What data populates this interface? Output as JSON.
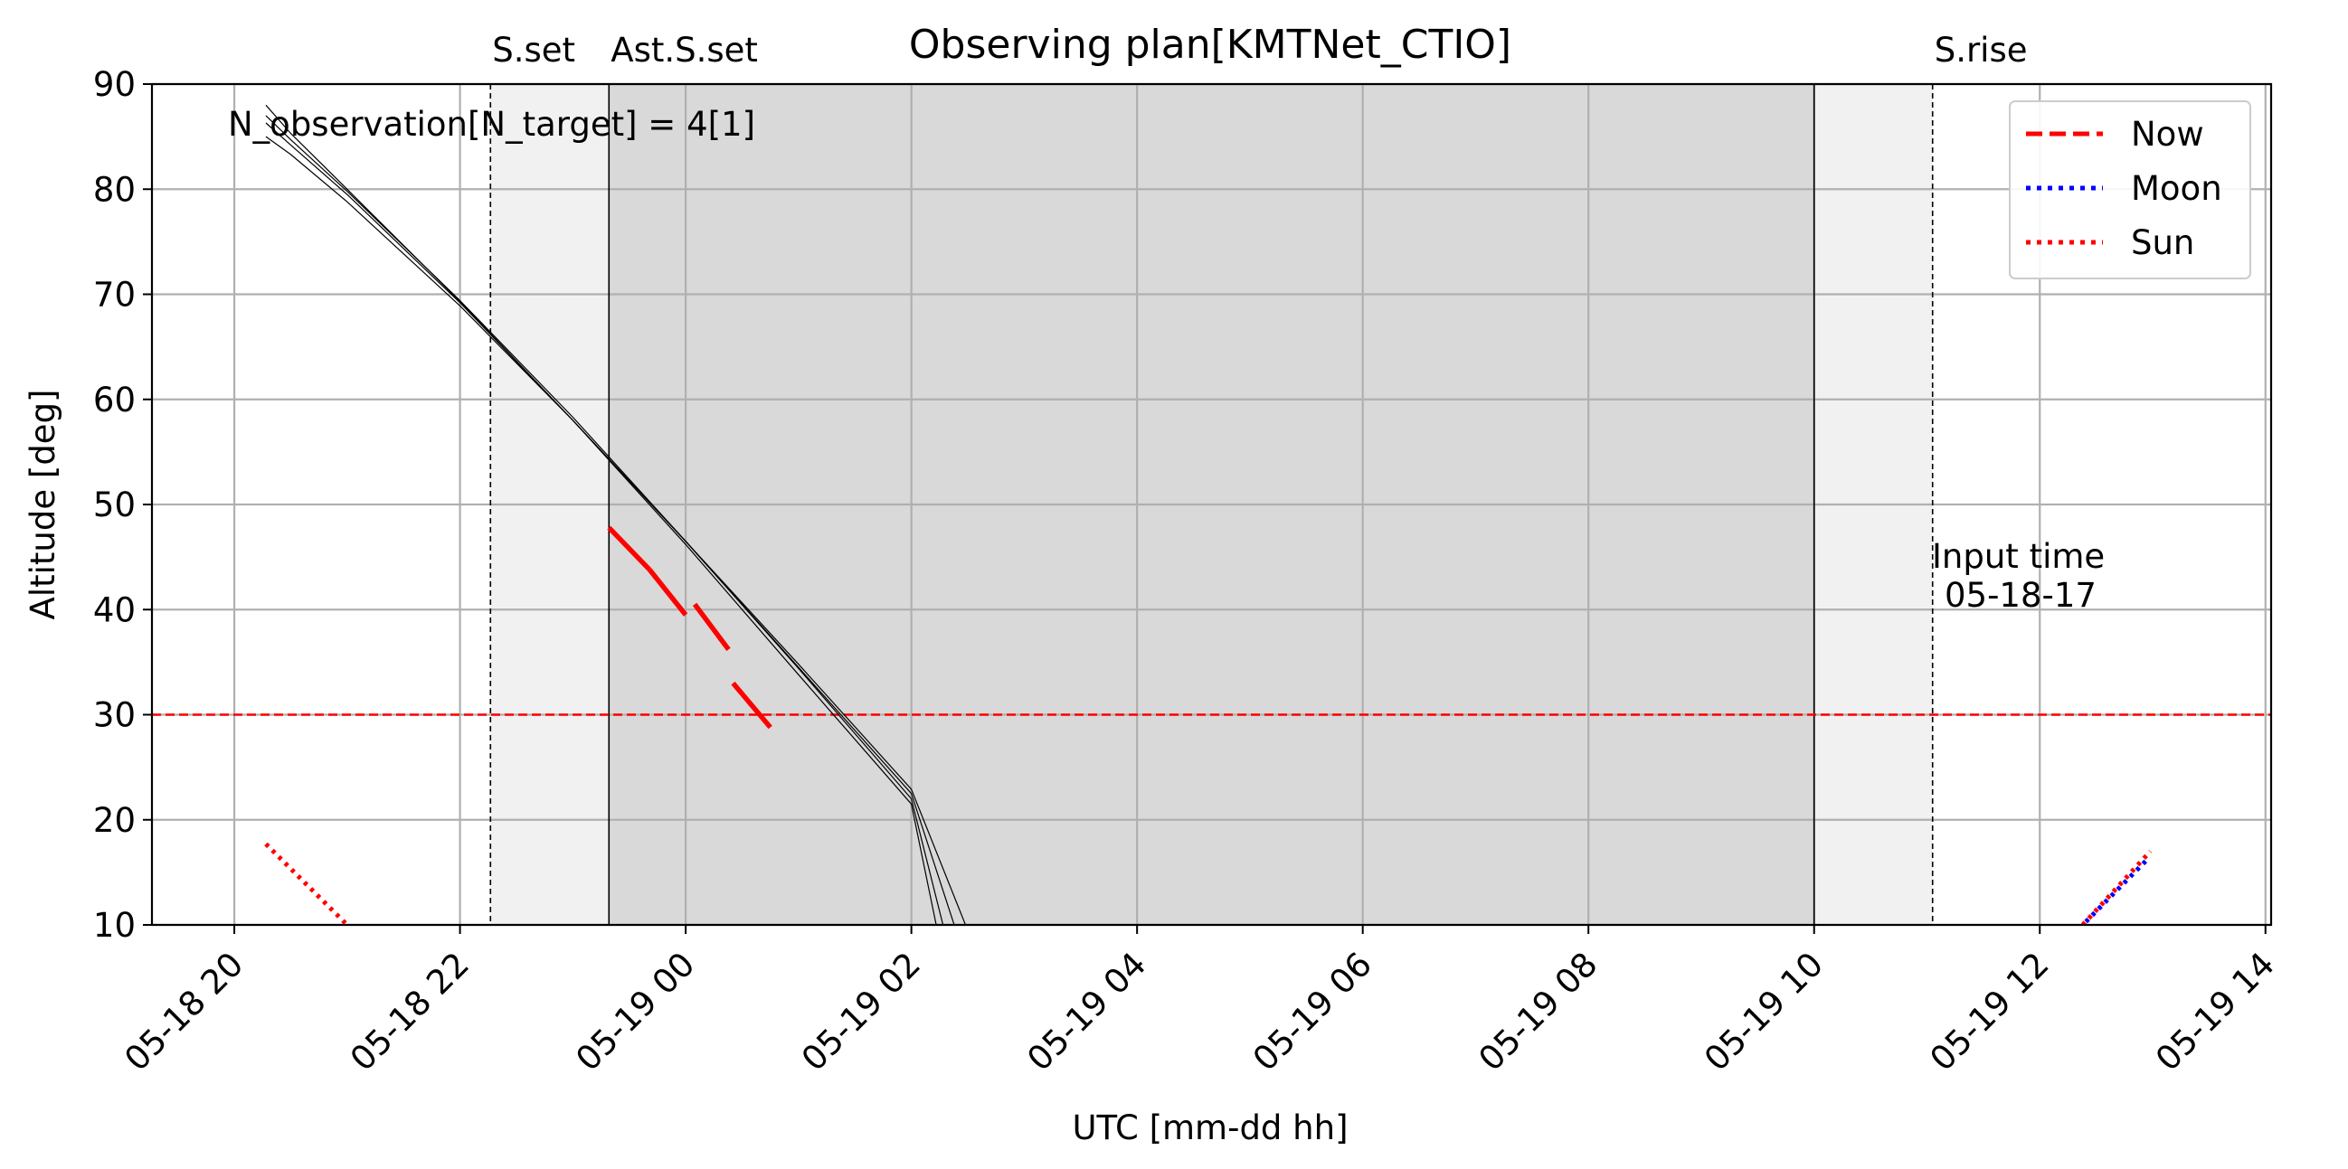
{
  "chart_data": {
    "type": "line",
    "title": "Observing plan[KMTNet_CTIO]",
    "xlabel": "UTC [mm-dd hh]",
    "ylabel": "Altitude [deg]",
    "xlim": [
      -0.73,
      18.05
    ],
    "ylim": [
      10,
      90
    ],
    "x_unit": "hours since 05-18 20 UTC",
    "x_ticks": [
      0,
      2,
      4,
      6,
      8,
      10,
      12,
      14,
      16,
      18
    ],
    "x_tick_labels": [
      "05-18 20",
      "05-18 22",
      "05-19 00",
      "05-19 02",
      "05-19 04",
      "05-19 06",
      "05-19 08",
      "05-19 10",
      "05-19 12",
      "05-19 14"
    ],
    "y_ticks": [
      10,
      20,
      30,
      40,
      50,
      60,
      70,
      80,
      90
    ],
    "grid": true,
    "legend_position": "top-right",
    "annotation": "N_observation[N_target] = 4[1]",
    "input_time_label": "Input time",
    "input_time_value": "05-18-17",
    "altitude_limit": 30,
    "night_events": [
      {
        "label": "S.set",
        "x": 2.27
      },
      {
        "label": "Ast.S.set",
        "x": 3.32
      },
      {
        "label": "",
        "x": 14.0
      },
      {
        "label": "S.rise",
        "x": 15.05
      }
    ],
    "target_tracks": [
      {
        "x": [
          0.28,
          0.5,
          1.0,
          2.0,
          3.0,
          4.0,
          5.0,
          6.0,
          6.48
        ],
        "y": [
          85.0,
          83.3,
          78.8,
          68.9,
          58.0,
          46.5,
          34.8,
          22.9,
          10
        ]
      },
      {
        "x": [
          0.28,
          0.5,
          1.0,
          2.0,
          3.0,
          4.0,
          5.0,
          6.0,
          6.38
        ],
        "y": [
          86.3,
          84.2,
          79.5,
          69.2,
          58.0,
          46.5,
          34.5,
          22.5,
          10
        ]
      },
      {
        "x": [
          0.28,
          0.5,
          1.0,
          2.0,
          3.0,
          4.0,
          5.0,
          6.0,
          6.28
        ],
        "y": [
          87.0,
          84.7,
          79.8,
          69.4,
          58.3,
          46.5,
          34.4,
          22.0,
          10
        ]
      },
      {
        "x": [
          0.28,
          0.5,
          1.0,
          2.0,
          3.0,
          4.0,
          5.0,
          6.0,
          6.22
        ],
        "y": [
          88.0,
          85.3,
          80.0,
          69.3,
          58.0,
          46.2,
          33.8,
          21.5,
          10
        ]
      }
    ],
    "observation_segments": [
      {
        "x": [
          3.32,
          3.68
        ],
        "y": [
          47.8,
          43.8
        ]
      },
      {
        "x": [
          3.68,
          4.0
        ],
        "y": [
          43.8,
          39.5
        ]
      },
      {
        "x": [
          4.08,
          4.38
        ],
        "y": [
          40.5,
          36.2
        ]
      },
      {
        "x": [
          4.42,
          4.75
        ],
        "y": [
          33.0,
          28.8
        ]
      }
    ],
    "series": [
      {
        "name": "Now",
        "color": "#ff0000",
        "style": "dashed",
        "x": [],
        "y": []
      },
      {
        "name": "Moon",
        "color": "#0000ff",
        "style": "dotted",
        "x": [
          16.38,
          16.95
        ],
        "y": [
          10.0,
          16.2
        ]
      },
      {
        "name": "Sun",
        "color": "#ff0000",
        "style": "dotted",
        "x": [
          0.28,
          1.0
        ],
        "y": [
          17.7,
          10.0
        ]
      }
    ],
    "sun_rise_track": {
      "x": [
        16.38,
        16.98
      ],
      "y": [
        10.0,
        17.0
      ]
    }
  }
}
